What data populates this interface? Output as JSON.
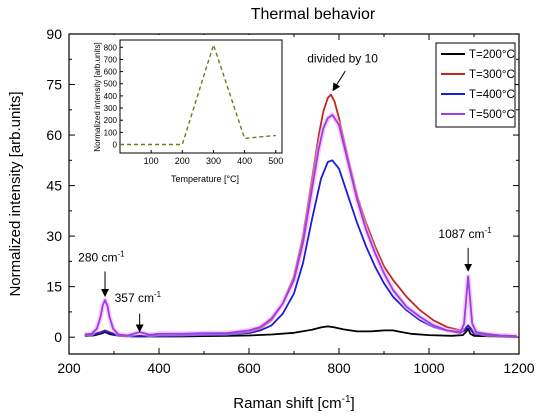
{
  "chart_data": [
    {
      "type": "line",
      "title": "Thermal behavior",
      "xlabel": "Raman shift [cm",
      "xlabel_sup": "-1",
      "xlabel_end": "]",
      "ylabel": "Normalized intensity [arb.units]",
      "xlim": [
        200,
        1200
      ],
      "ylim": [
        -5,
        90
      ],
      "xticks": [
        200,
        400,
        600,
        800,
        1000,
        1200
      ],
      "yticks": [
        0,
        15,
        30,
        45,
        60,
        75,
        90
      ],
      "x_minor_step": 100,
      "y_minor_step": 7.5,
      "grid": false,
      "legend_position": "top-right",
      "series": [
        {
          "name": "T=200°C",
          "color": "#000000",
          "x": [
            235,
            255,
            270,
            280,
            290,
            310,
            340,
            360,
            400,
            450,
            500,
            550,
            600,
            650,
            700,
            740,
            760,
            775,
            790,
            810,
            840,
            870,
            900,
            920,
            935,
            960,
            1000,
            1050,
            1075,
            1082,
            1087,
            1092,
            1100,
            1150,
            1180,
            1195
          ],
          "y": [
            0.3,
            0.5,
            1.0,
            1.5,
            0.9,
            0.4,
            0.2,
            0.2,
            0.2,
            0.2,
            0.3,
            0.4,
            0.5,
            0.8,
            1.3,
            2.2,
            2.9,
            3.2,
            2.9,
            2.3,
            1.7,
            1.7,
            2.0,
            2.0,
            1.6,
            1.0,
            0.6,
            0.4,
            0.6,
            1.5,
            2.5,
            1.0,
            0.4,
            0.2,
            0.1,
            0.1
          ]
        },
        {
          "name": "T=300°C",
          "color": "#c0281e",
          "x": [
            235,
            255,
            270,
            280,
            290,
            310,
            340,
            360,
            400,
            450,
            500,
            550,
            600,
            625,
            650,
            675,
            700,
            720,
            740,
            755,
            765,
            775,
            782,
            790,
            800,
            820,
            840,
            860,
            880,
            900,
            920,
            950,
            980,
            1010,
            1040,
            1070,
            1080,
            1087,
            1094,
            1100,
            1130,
            1160,
            1195
          ],
          "y": [
            0.8,
            1.0,
            1.5,
            2.0,
            1.5,
            0.5,
            0.3,
            0.4,
            0.4,
            0.5,
            0.7,
            1.0,
            1.5,
            2.5,
            5.0,
            10.0,
            18.0,
            30.0,
            47.0,
            60.0,
            67.0,
            71.0,
            72.0,
            70.0,
            65.0,
            53.0,
            42.0,
            34.0,
            27.0,
            21.0,
            17.0,
            12.0,
            8.0,
            5.0,
            3.0,
            2.0,
            2.5,
            3.5,
            2.5,
            1.5,
            1.0,
            0.5,
            0.3
          ]
        },
        {
          "name": "T=400°C",
          "color": "#1c1cdc",
          "x": [
            235,
            255,
            270,
            280,
            290,
            310,
            340,
            360,
            400,
            450,
            500,
            550,
            600,
            625,
            650,
            675,
            700,
            720,
            740,
            760,
            775,
            785,
            800,
            820,
            840,
            860,
            880,
            900,
            920,
            950,
            980,
            1010,
            1040,
            1070,
            1080,
            1087,
            1094,
            1100,
            1130,
            1160,
            1195
          ],
          "y": [
            0.6,
            0.8,
            1.2,
            1.8,
            1.3,
            0.4,
            0.3,
            0.3,
            0.3,
            0.4,
            0.6,
            0.8,
            1.2,
            2.0,
            3.5,
            7.0,
            13.0,
            22.0,
            35.0,
            47.0,
            52.0,
            52.5,
            50.0,
            42.0,
            34.0,
            27.0,
            21.0,
            16.0,
            12.0,
            8.0,
            5.0,
            3.0,
            2.0,
            1.2,
            2.0,
            3.5,
            2.0,
            1.0,
            0.7,
            0.4,
            0.2
          ]
        },
        {
          "name": "T=500°C",
          "color": "#9a3ee8",
          "x": [
            235,
            250,
            262,
            270,
            275,
            280,
            285,
            290,
            298,
            310,
            330,
            357,
            380,
            400,
            450,
            500,
            550,
            600,
            625,
            650,
            675,
            700,
            720,
            740,
            755,
            765,
            775,
            785,
            800,
            820,
            840,
            860,
            880,
            900,
            920,
            950,
            980,
            1010,
            1040,
            1070,
            1078,
            1083,
            1087,
            1091,
            1096,
            1105,
            1130,
            1160,
            1195
          ],
          "y": [
            0.8,
            1.0,
            2.5,
            6.0,
            9.5,
            11.0,
            9.5,
            6.0,
            2.5,
            0.8,
            0.5,
            1.5,
            0.7,
            1.0,
            1.0,
            1.2,
            1.2,
            2.0,
            3.0,
            5.5,
            10.0,
            17.0,
            28.0,
            44.0,
            56.0,
            62.0,
            65.0,
            66.0,
            63.0,
            52.0,
            41.0,
            32.0,
            25.0,
            19.0,
            14.0,
            9.0,
            6.0,
            3.5,
            2.0,
            1.5,
            4.0,
            12.0,
            18.0,
            12.0,
            4.0,
            1.5,
            0.8,
            0.5,
            0.3
          ]
        }
      ],
      "annotations": [
        {
          "name": "ann-280",
          "text": "280 cm",
          "sup": "-1",
          "tx": 272,
          "ty": 22.5,
          "ax": 280,
          "ay": 19.5,
          "ax2": 280,
          "ay2": 12.5
        },
        {
          "name": "ann-357",
          "text": "357 cm",
          "sup": "-1",
          "tx": 353,
          "ty": 10.5,
          "ax": 357,
          "ay": 7.0,
          "ax2": 357,
          "ay2": 2.0
        },
        {
          "name": "ann-1087",
          "text": "1087 cm",
          "sup": "-1",
          "tx": 1080,
          "ty": 29.5,
          "ax": 1087,
          "ay": 26.5,
          "ax2": 1087,
          "ay2": 20.0
        },
        {
          "name": "ann-divided",
          "text": "divided by 10",
          "sup": "",
          "tx": 808,
          "ty": 81.5,
          "ax": 814,
          "ay": 79.0,
          "ax2": 788,
          "ay2": 73.5
        }
      ]
    },
    {
      "type": "line",
      "title": "",
      "xlabel": "Temperature [°C]",
      "ylabel": "Normalized intensity [arb.units]",
      "xlim": [
        0,
        520
      ],
      "ylim": [
        -70,
        860
      ],
      "xticks": [
        100,
        200,
        300,
        400,
        500
      ],
      "yticks": [
        0,
        100,
        200,
        300,
        400,
        500,
        600,
        700,
        800
      ],
      "grid": false,
      "series": [
        {
          "name": "",
          "color": "#6b7d14",
          "dash": "4,3",
          "x": [
            0,
            200,
            300,
            400,
            500
          ],
          "y": [
            0,
            0,
            820,
            50,
            75
          ]
        }
      ]
    }
  ]
}
